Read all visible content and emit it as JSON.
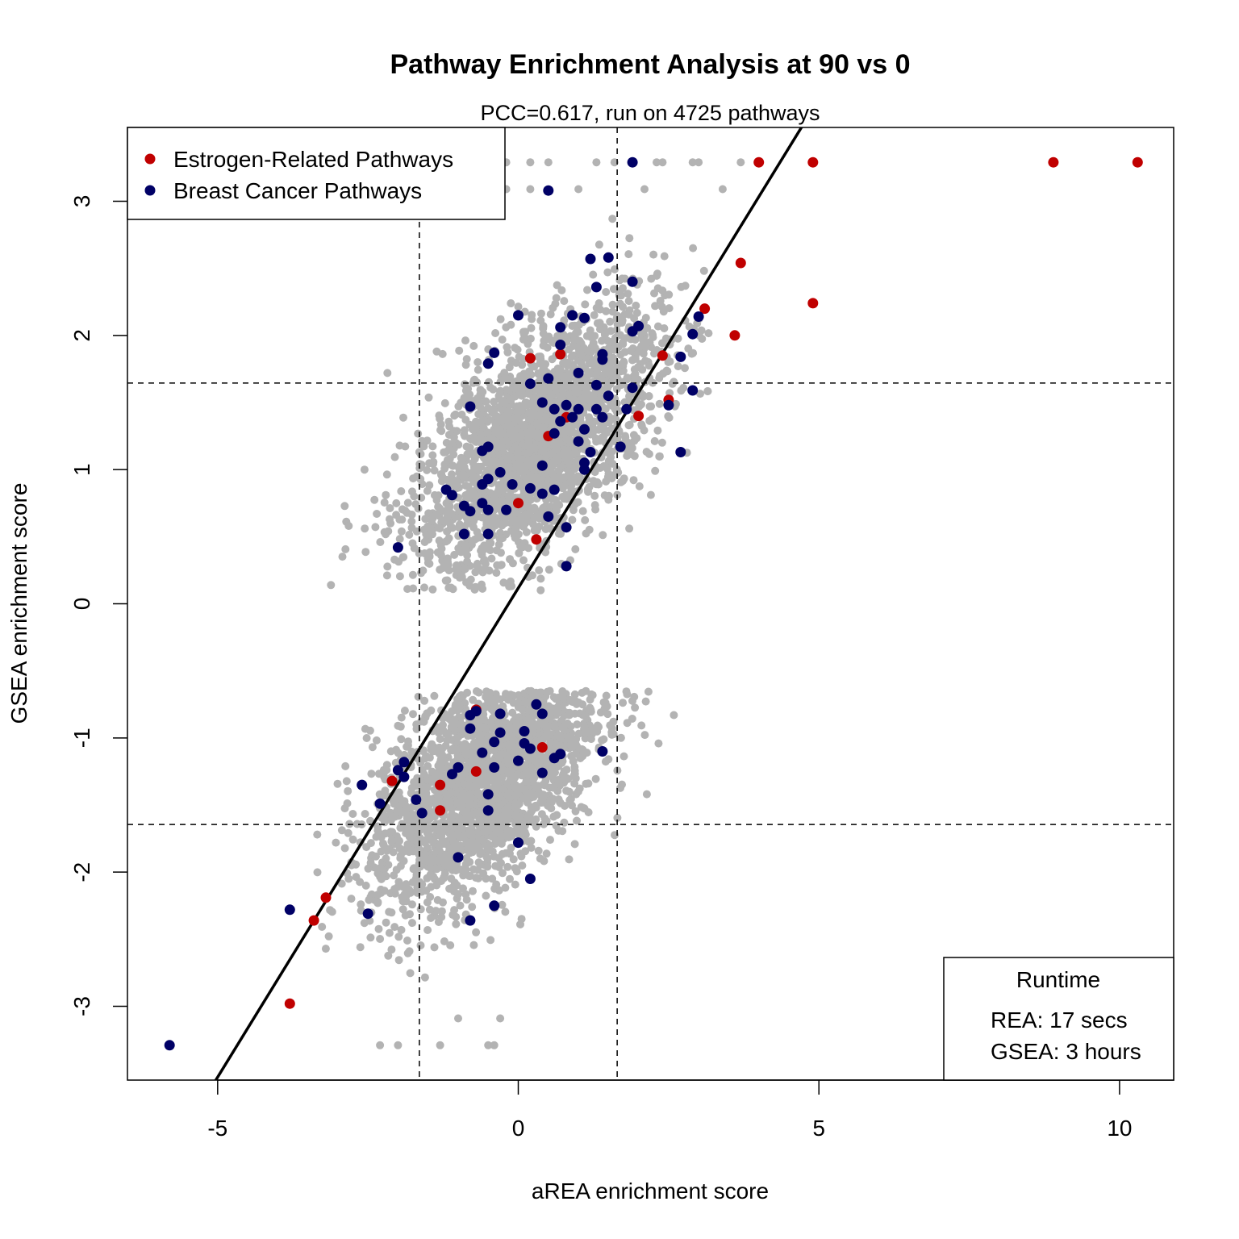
{
  "chart_data": {
    "type": "scatter",
    "title": "Pathway Enrichment Analysis at 90 vs 0",
    "subtitle": "PCC=0.617, run on 4725 pathways",
    "xlabel": "aREA enrichment score",
    "ylabel": "GSEA enrichment score",
    "xlim": [
      -6.5,
      10.9
    ],
    "ylim": [
      -3.55,
      3.55
    ],
    "x_ticks": [
      -5,
      0,
      5,
      10
    ],
    "x_tick_labels": [
      "-5",
      "0",
      "5",
      "10"
    ],
    "y_ticks": [
      -3,
      -2,
      -1,
      0,
      1,
      2,
      3
    ],
    "y_tick_labels": [
      "-3",
      "-2",
      "-1",
      "0",
      "1",
      "2",
      "3"
    ],
    "grid": false,
    "reference_lines": {
      "vertical": [
        -1.645,
        1.645
      ],
      "horizontal": [
        -1.645,
        1.645
      ],
      "style": "dashed"
    },
    "fit_line": {
      "slope": 0.729,
      "intercept": 0.117
    },
    "background_points": {
      "color": "#b3b3b3",
      "clusters": [
        {
          "cx": 0.3,
          "cy": 1.2,
          "sx": 1.05,
          "sy": 0.5,
          "rho": 0.62,
          "n": 2350
        },
        {
          "cx": -0.55,
          "cy": -1.3,
          "sx": 0.95,
          "sy": 0.48,
          "rho": 0.55,
          "n": 2150
        }
      ],
      "top_row": [
        [
          -0.4,
          3.29
        ],
        [
          -0.2,
          3.29
        ],
        [
          0.2,
          3.29
        ],
        [
          0.5,
          3.29
        ],
        [
          1.3,
          3.29
        ],
        [
          1.6,
          3.29
        ],
        [
          2.3,
          3.29
        ],
        [
          2.4,
          3.29
        ],
        [
          2.9,
          3.29
        ],
        [
          3.0,
          3.29
        ],
        [
          3.7,
          3.29
        ],
        [
          -0.2,
          3.09
        ],
        [
          0.2,
          3.09
        ],
        [
          1.0,
          3.09
        ],
        [
          2.1,
          3.09
        ],
        [
          3.4,
          3.09
        ]
      ],
      "bottom_row": [
        [
          -2.3,
          -3.29
        ],
        [
          -2.0,
          -3.29
        ],
        [
          -1.3,
          -3.29
        ],
        [
          -0.5,
          -3.29
        ],
        [
          -0.4,
          -3.29
        ],
        [
          -1.0,
          -3.09
        ],
        [
          -0.3,
          -3.09
        ]
      ]
    },
    "series": [
      {
        "name": "Estrogen-Related Pathways",
        "color": "#c00000",
        "points": [
          [
            10.3,
            3.29
          ],
          [
            8.9,
            3.29
          ],
          [
            4.9,
            3.29
          ],
          [
            4.0,
            3.29
          ],
          [
            3.7,
            2.54
          ],
          [
            4.9,
            2.24
          ],
          [
            3.1,
            2.2
          ],
          [
            3.6,
            2.0
          ],
          [
            0.2,
            1.83
          ],
          [
            0.7,
            1.86
          ],
          [
            2.4,
            1.85
          ],
          [
            2.5,
            1.52
          ],
          [
            2.0,
            1.4
          ],
          [
            0.8,
            1.39
          ],
          [
            0.5,
            1.25
          ],
          [
            0.0,
            0.75
          ],
          [
            0.3,
            0.48
          ],
          [
            -0.7,
            -0.79
          ],
          [
            0.4,
            -1.07
          ],
          [
            -0.7,
            -1.25
          ],
          [
            -2.1,
            -1.32
          ],
          [
            -1.3,
            -1.35
          ],
          [
            -1.3,
            -1.54
          ],
          [
            -3.2,
            -2.19
          ],
          [
            -3.4,
            -2.36
          ],
          [
            -3.8,
            -2.98
          ]
        ]
      },
      {
        "name": "Breast Cancer Pathways",
        "color": "#000066",
        "points": [
          [
            1.9,
            3.29
          ],
          [
            0.5,
            3.08
          ],
          [
            1.2,
            2.57
          ],
          [
            1.5,
            2.58
          ],
          [
            1.9,
            2.4
          ],
          [
            1.3,
            2.36
          ],
          [
            3.0,
            2.14
          ],
          [
            0.0,
            2.15
          ],
          [
            0.9,
            2.15
          ],
          [
            1.1,
            2.13
          ],
          [
            0.7,
            2.06
          ],
          [
            2.0,
            2.07
          ],
          [
            1.9,
            2.03
          ],
          [
            2.9,
            2.01
          ],
          [
            0.7,
            1.93
          ],
          [
            -0.4,
            1.87
          ],
          [
            1.4,
            1.86
          ],
          [
            1.4,
            1.82
          ],
          [
            2.7,
            1.84
          ],
          [
            -0.5,
            1.79
          ],
          [
            1.0,
            1.72
          ],
          [
            0.5,
            1.68
          ],
          [
            0.2,
            1.64
          ],
          [
            1.3,
            1.63
          ],
          [
            1.9,
            1.61
          ],
          [
            2.9,
            1.59
          ],
          [
            1.5,
            1.55
          ],
          [
            0.4,
            1.5
          ],
          [
            0.8,
            1.48
          ],
          [
            -0.8,
            1.47
          ],
          [
            0.6,
            1.45
          ],
          [
            1.0,
            1.45
          ],
          [
            1.3,
            1.45
          ],
          [
            1.8,
            1.45
          ],
          [
            2.5,
            1.48
          ],
          [
            1.4,
            1.39
          ],
          [
            0.9,
            1.39
          ],
          [
            0.7,
            1.36
          ],
          [
            1.1,
            1.3
          ],
          [
            0.6,
            1.27
          ],
          [
            1.0,
            1.21
          ],
          [
            -0.5,
            1.17
          ],
          [
            -0.6,
            1.14
          ],
          [
            1.7,
            1.17
          ],
          [
            2.7,
            1.13
          ],
          [
            1.2,
            1.13
          ],
          [
            1.1,
            1.05
          ],
          [
            0.4,
            1.03
          ],
          [
            -0.3,
            0.98
          ],
          [
            1.1,
            1.0
          ],
          [
            -0.5,
            0.93
          ],
          [
            -0.6,
            0.89
          ],
          [
            -0.1,
            0.89
          ],
          [
            0.2,
            0.86
          ],
          [
            0.4,
            0.82
          ],
          [
            0.6,
            0.85
          ],
          [
            -1.2,
            0.85
          ],
          [
            -1.1,
            0.81
          ],
          [
            -0.6,
            0.75
          ],
          [
            -0.9,
            0.73
          ],
          [
            -0.5,
            0.7
          ],
          [
            -0.2,
            0.7
          ],
          [
            -0.8,
            0.69
          ],
          [
            0.5,
            0.65
          ],
          [
            0.8,
            0.57
          ],
          [
            -0.9,
            0.52
          ],
          [
            -0.5,
            0.52
          ],
          [
            -2.0,
            0.42
          ],
          [
            0.8,
            0.28
          ],
          [
            -0.7,
            -0.8
          ],
          [
            0.3,
            -0.75
          ],
          [
            -0.8,
            -0.83
          ],
          [
            -0.3,
            -0.82
          ],
          [
            0.4,
            -0.82
          ],
          [
            -0.8,
            -0.93
          ],
          [
            0.1,
            -0.95
          ],
          [
            -0.3,
            -0.96
          ],
          [
            -0.4,
            -1.03
          ],
          [
            0.1,
            -1.04
          ],
          [
            0.2,
            -1.08
          ],
          [
            0.7,
            -1.12
          ],
          [
            -0.6,
            -1.11
          ],
          [
            0.0,
            -1.17
          ],
          [
            0.6,
            -1.15
          ],
          [
            1.4,
            -1.1
          ],
          [
            -1.9,
            -1.18
          ],
          [
            -0.4,
            -1.22
          ],
          [
            -1.0,
            -1.22
          ],
          [
            -2.0,
            -1.24
          ],
          [
            0.4,
            -1.26
          ],
          [
            -1.1,
            -1.27
          ],
          [
            -1.9,
            -1.29
          ],
          [
            -2.6,
            -1.35
          ],
          [
            -0.5,
            -1.42
          ],
          [
            -1.7,
            -1.46
          ],
          [
            -2.3,
            -1.49
          ],
          [
            -0.5,
            -1.54
          ],
          [
            -1.6,
            -1.56
          ],
          [
            0.0,
            -1.78
          ],
          [
            -1.0,
            -1.89
          ],
          [
            0.2,
            -2.05
          ],
          [
            -2.5,
            -2.31
          ],
          [
            -3.8,
            -2.28
          ],
          [
            -0.4,
            -2.25
          ],
          [
            -0.8,
            -2.36
          ],
          [
            -5.8,
            -3.29
          ]
        ]
      }
    ],
    "legend": {
      "position": "top-left",
      "items": [
        "Estrogen-Related Pathways",
        "Breast Cancer Pathways"
      ]
    },
    "runtime_box": {
      "position": "bottom-right",
      "title": "Runtime",
      "lines": [
        "REA: 17 secs",
        "GSEA: 3 hours"
      ]
    }
  }
}
